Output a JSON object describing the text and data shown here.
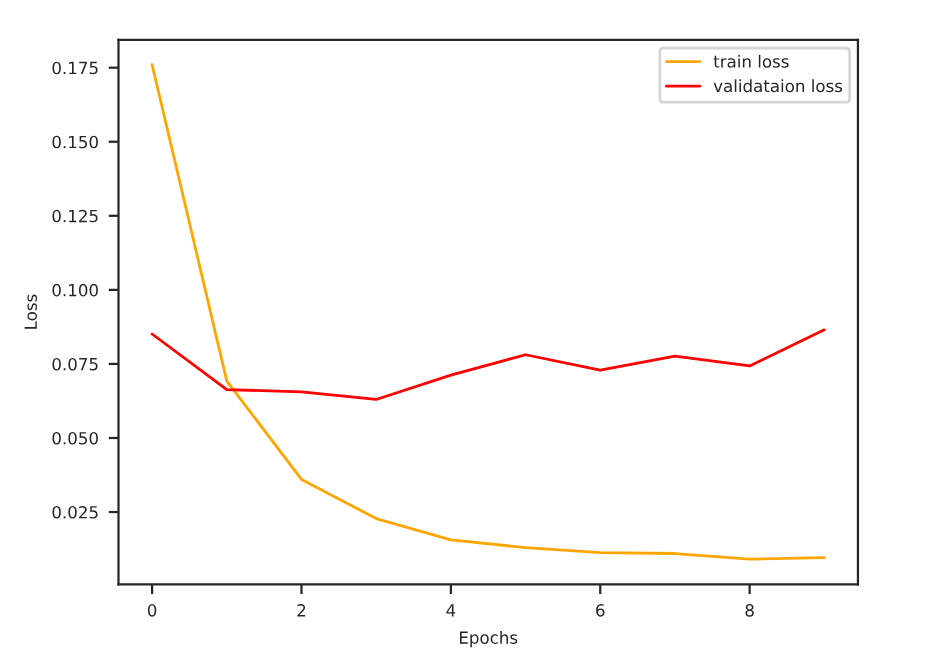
{
  "chart_data": {
    "type": "line",
    "xlabel": "Epochs",
    "ylabel": "Loss",
    "x": [
      0,
      1,
      2,
      3,
      4,
      5,
      6,
      7,
      8,
      9
    ],
    "series": [
      {
        "name": "train loss",
        "color": "#ffa500",
        "values": [
          0.176,
          0.0692,
          0.036,
          0.0228,
          0.0156,
          0.013,
          0.0113,
          0.011,
          0.0091,
          0.0096
        ]
      },
      {
        "name": "validataion loss",
        "color": "#ff0000",
        "values": [
          0.0851,
          0.0663,
          0.0656,
          0.063,
          0.0712,
          0.0781,
          0.0729,
          0.0776,
          0.0743,
          0.0865
        ]
      }
    ],
    "xlim": [
      -0.45,
      9.45
    ],
    "xticks": [
      0,
      2,
      4,
      6,
      8
    ],
    "ylim": [
      0.0006,
      0.1844
    ],
    "yticks": [
      0.025,
      {
        "value": 0.05,
        "label": "0.050"
      },
      0.075,
      {
        "value": 0.1,
        "label": "0.100"
      },
      0.125,
      {
        "value": 0.15,
        "label": "0.150"
      },
      0.175
    ],
    "grid": false,
    "legend": "top right"
  }
}
